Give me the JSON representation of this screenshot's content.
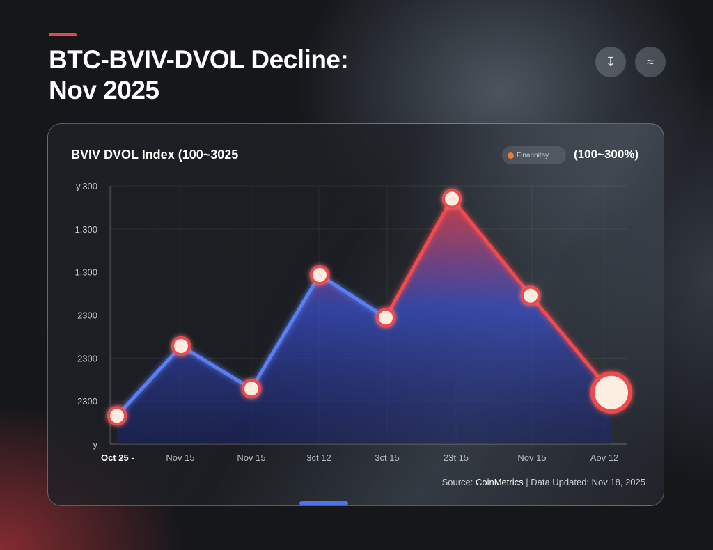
{
  "header": {
    "title_line1": "BTC-BVIV-DVOL Decline:",
    "title_line2": "Nov 2025"
  },
  "toolbar": {
    "icons": [
      "download-icon",
      "layers-icon"
    ]
  },
  "legend": {
    "label": "Finannitay",
    "dot_color": "#f07a30"
  },
  "range_label": "(100~300%)",
  "footer": {
    "source_prefix": "Source: ",
    "source_name": "CoinMetrics",
    "updated": " | Data Updated: Nov 18, 2025"
  },
  "chart_data": {
    "type": "area",
    "title": "BVIV DVOL Index (100~3025",
    "categories": [
      "Oct 25 -",
      "Nov 15",
      "Nov 15",
      "3ct 12",
      "3ct 15",
      "23t 15",
      "Nov 15",
      "Aov 12"
    ],
    "values": [
      122,
      176,
      143,
      231,
      198,
      290,
      215,
      140
    ],
    "ylim": [
      100,
      300
    ],
    "ytick_labels": [
      "y",
      "2300",
      "2300",
      "2300",
      "1.300",
      "1.300",
      "y.300"
    ],
    "grid": true,
    "colors": {
      "rising": "#5a7ff0",
      "peak": "#f04a50",
      "marker_fill": "#fbeee0"
    }
  }
}
